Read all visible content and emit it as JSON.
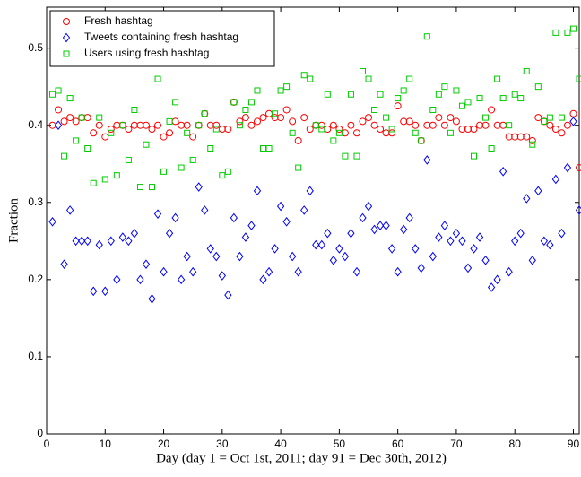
{
  "chart_data": {
    "type": "scatter",
    "xlabel": "Day (day 1 = Oct 1st, 2011; day 91 = Dec 30th, 2012)",
    "ylabel": "Fraction",
    "x": [
      1,
      2,
      3,
      4,
      5,
      6,
      7,
      8,
      9,
      10,
      11,
      12,
      13,
      14,
      15,
      16,
      17,
      18,
      19,
      20,
      21,
      22,
      23,
      24,
      25,
      26,
      27,
      28,
      29,
      30,
      31,
      32,
      33,
      34,
      35,
      36,
      37,
      38,
      39,
      40,
      41,
      42,
      43,
      44,
      45,
      46,
      47,
      48,
      49,
      50,
      51,
      52,
      53,
      54,
      55,
      56,
      57,
      58,
      59,
      60,
      61,
      62,
      63,
      64,
      65,
      66,
      67,
      68,
      69,
      70,
      71,
      72,
      73,
      74,
      75,
      76,
      77,
      78,
      79,
      80,
      81,
      82,
      83,
      84,
      85,
      86,
      87,
      88,
      89,
      90,
      91
    ],
    "series": [
      {
        "name": "Fresh hashtag",
        "color": "#ff0000",
        "marker": "circle",
        "values": [
          0.4,
          0.42,
          0.405,
          0.41,
          0.405,
          0.41,
          0.41,
          0.39,
          0.4,
          0.385,
          0.395,
          0.4,
          0.4,
          0.395,
          0.4,
          0.4,
          0.4,
          0.395,
          0.4,
          0.385,
          0.39,
          0.405,
          0.4,
          0.4,
          0.385,
          0.4,
          0.415,
          0.4,
          0.4,
          0.395,
          0.395,
          0.43,
          0.405,
          0.41,
          0.4,
          0.405,
          0.41,
          0.415,
          0.41,
          0.41,
          0.42,
          0.405,
          0.38,
          0.41,
          0.395,
          0.4,
          0.4,
          0.395,
          0.4,
          0.395,
          0.39,
          0.4,
          0.39,
          0.405,
          0.41,
          0.4,
          0.395,
          0.39,
          0.39,
          0.425,
          0.405,
          0.405,
          0.4,
          0.38,
          0.4,
          0.4,
          0.41,
          0.4,
          0.41,
          0.405,
          0.395,
          0.395,
          0.395,
          0.4,
          0.4,
          0.42,
          0.4,
          0.4,
          0.385,
          0.385,
          0.385,
          0.385,
          0.38,
          0.41,
          0.405,
          0.4,
          0.395,
          0.39,
          0.4,
          0.415,
          0.345
        ]
      },
      {
        "name": "Tweets containing fresh hashtag",
        "color": "#0000ff",
        "marker": "diamond",
        "values": [
          0.275,
          0.4,
          0.22,
          0.29,
          0.25,
          0.25,
          0.25,
          0.185,
          0.245,
          0.185,
          0.25,
          0.2,
          0.255,
          0.25,
          0.26,
          0.2,
          0.22,
          0.175,
          0.285,
          0.21,
          0.26,
          0.28,
          0.2,
          0.23,
          0.21,
          0.32,
          0.29,
          0.24,
          0.23,
          0.205,
          0.18,
          0.28,
          0.23,
          0.255,
          0.27,
          0.315,
          0.2,
          0.21,
          0.24,
          0.295,
          0.275,
          0.23,
          0.21,
          0.29,
          0.315,
          0.245,
          0.245,
          0.26,
          0.225,
          0.24,
          0.23,
          0.26,
          0.21,
          0.28,
          0.295,
          0.265,
          0.27,
          0.27,
          0.24,
          0.21,
          0.265,
          0.28,
          0.24,
          0.215,
          0.355,
          0.23,
          0.255,
          0.27,
          0.25,
          0.26,
          0.25,
          0.215,
          0.24,
          0.255,
          0.225,
          0.19,
          0.2,
          0.34,
          0.21,
          0.25,
          0.26,
          0.305,
          0.225,
          0.315,
          0.25,
          0.245,
          0.33,
          0.26,
          0.345,
          0.405,
          0.29
        ]
      },
      {
        "name": "Users using fresh hashtag",
        "color": "#00cc00",
        "marker": "square",
        "values": [
          0.44,
          0.445,
          0.36,
          0.435,
          0.38,
          0.41,
          0.37,
          0.325,
          0.41,
          0.33,
          0.39,
          0.335,
          0.4,
          0.355,
          0.42,
          0.32,
          0.375,
          0.32,
          0.46,
          0.34,
          0.405,
          0.43,
          0.345,
          0.39,
          0.355,
          0.4,
          0.415,
          0.37,
          0.395,
          0.335,
          0.34,
          0.43,
          0.4,
          0.42,
          0.43,
          0.445,
          0.37,
          0.37,
          0.415,
          0.445,
          0.45,
          0.39,
          0.345,
          0.465,
          0.46,
          0.4,
          0.395,
          0.44,
          0.38,
          0.39,
          0.36,
          0.44,
          0.36,
          0.47,
          0.46,
          0.42,
          0.44,
          0.41,
          0.395,
          0.435,
          0.445,
          0.46,
          0.39,
          0.38,
          0.515,
          0.42,
          0.44,
          0.45,
          0.39,
          0.445,
          0.425,
          0.43,
          0.36,
          0.435,
          0.41,
          0.37,
          0.46,
          0.435,
          0.4,
          0.44,
          0.435,
          0.47,
          0.375,
          0.45,
          0.405,
          0.41,
          0.52,
          0.41,
          0.52,
          0.525,
          0.46
        ]
      }
    ],
    "xlim": [
      0,
      91
    ],
    "ylim": [
      0,
      0.553
    ],
    "xticks": [
      0,
      10,
      20,
      30,
      40,
      50,
      60,
      70,
      80,
      90
    ],
    "yticks": [
      0,
      0.1,
      0.2,
      0.3,
      0.4,
      0.5
    ],
    "legend": "upper left"
  }
}
